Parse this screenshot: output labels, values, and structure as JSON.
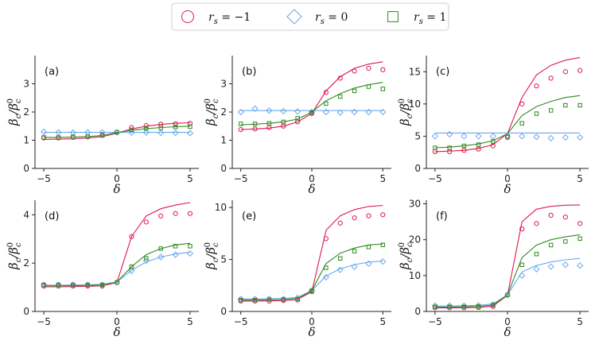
{
  "chart_data": {
    "type": "line",
    "legend": {
      "placement": "top-center",
      "entries": [
        {
          "label": "r_s = −1",
          "sub": "s",
          "rhs": "= −1",
          "marker": "circle",
          "color": "#e0174e"
        },
        {
          "label": "r_s = 0",
          "sub": "s",
          "rhs": "= 0",
          "marker": "diamond",
          "color": "#6aa9ee"
        },
        {
          "label": "r_s = 1",
          "sub": "s",
          "rhs": "= 1",
          "marker": "square",
          "color": "#2e8b1e"
        }
      ]
    },
    "series_colors": {
      "rneg1": "#e0174e",
      "r0": "#6aa9ee",
      "r1": "#2e8b1e"
    },
    "xlabel": "δ",
    "ylabel": "β_c/β_c^0",
    "x_line": [
      -5,
      -4,
      -3,
      -2,
      -1,
      0,
      1,
      2,
      3,
      4,
      5
    ],
    "x_points": [
      -5,
      -4,
      -3,
      -2,
      -1,
      0,
      1,
      2,
      3,
      4,
      5
    ],
    "xticks": [
      -5,
      0,
      5
    ],
    "xlim": [
      -5.6,
      5.6
    ],
    "panels": [
      {
        "label": "(a)",
        "ylim": [
          0,
          4
        ],
        "yticks": [
          0,
          1,
          2,
          3
        ],
        "lines": {
          "rneg1": [
            1.03,
            1.04,
            1.05,
            1.08,
            1.13,
            1.25,
            1.4,
            1.5,
            1.56,
            1.6,
            1.62
          ],
          "r0": [
            1.28,
            1.28,
            1.28,
            1.28,
            1.28,
            1.28,
            1.28,
            1.28,
            1.28,
            1.28,
            1.28
          ],
          "r1": [
            1.1,
            1.1,
            1.11,
            1.13,
            1.17,
            1.27,
            1.35,
            1.41,
            1.45,
            1.48,
            1.5
          ]
        },
        "points": {
          "rneg1": [
            1.08,
            1.08,
            1.1,
            1.12,
            1.18,
            1.28,
            1.45,
            1.52,
            1.57,
            1.58,
            1.6
          ],
          "r0": [
            1.3,
            1.28,
            1.27,
            1.28,
            1.28,
            1.28,
            1.27,
            1.27,
            1.26,
            1.26,
            1.25
          ],
          "r1": [
            1.1,
            1.1,
            1.12,
            1.13,
            1.17,
            1.28,
            1.37,
            1.42,
            1.44,
            1.47,
            1.48
          ]
        }
      },
      {
        "label": "(b)",
        "ylim": [
          0,
          4
        ],
        "yticks": [
          0,
          1,
          2,
          3
        ],
        "lines": {
          "rneg1": [
            1.38,
            1.4,
            1.43,
            1.5,
            1.65,
            1.95,
            2.75,
            3.25,
            3.55,
            3.7,
            3.78
          ],
          "r0": [
            2.05,
            2.05,
            2.05,
            2.05,
            2.05,
            2.05,
            2.05,
            2.05,
            2.05,
            2.05,
            2.05
          ],
          "r1": [
            1.55,
            1.57,
            1.6,
            1.65,
            1.75,
            2.0,
            2.4,
            2.65,
            2.85,
            2.97,
            3.05
          ]
        },
        "points": {
          "rneg1": [
            1.38,
            1.4,
            1.45,
            1.5,
            1.65,
            1.95,
            2.7,
            3.2,
            3.45,
            3.55,
            3.5
          ],
          "r0": [
            2.0,
            2.12,
            2.05,
            2.03,
            2.02,
            2.0,
            2.0,
            1.98,
            2.0,
            2.0,
            2.0
          ],
          "r1": [
            1.58,
            1.58,
            1.6,
            1.65,
            1.78,
            1.98,
            2.3,
            2.55,
            2.75,
            2.9,
            2.82
          ]
        }
      },
      {
        "label": "(c)",
        "ylim": [
          0,
          17.5
        ],
        "yticks": [
          0,
          5,
          10,
          15
        ],
        "lines": {
          "rneg1": [
            2.6,
            2.7,
            2.8,
            3.1,
            3.7,
            5.4,
            11.0,
            14.5,
            16.0,
            16.8,
            17.2
          ],
          "r0": [
            5.5,
            5.5,
            5.5,
            5.5,
            5.5,
            5.5,
            5.5,
            5.5,
            5.5,
            5.5,
            5.5
          ],
          "r1": [
            3.2,
            3.3,
            3.5,
            3.8,
            4.3,
            5.4,
            8.2,
            9.6,
            10.4,
            11.0,
            11.3
          ]
        },
        "points": {
          "rneg1": [
            2.6,
            2.6,
            2.8,
            3.0,
            3.5,
            4.8,
            10.0,
            12.8,
            14.0,
            15.0,
            15.2
          ],
          "r0": [
            5.0,
            5.3,
            5.0,
            5.0,
            5.0,
            5.0,
            5.0,
            4.9,
            4.7,
            4.8,
            4.8
          ],
          "r1": [
            3.2,
            3.2,
            3.5,
            3.7,
            4.2,
            5.0,
            7.0,
            8.5,
            9.0,
            9.8,
            9.8
          ]
        }
      },
      {
        "label": "(d)",
        "ylim": [
          0,
          4.6
        ],
        "yticks": [
          0,
          2,
          4
        ],
        "lines": {
          "rneg1": [
            1.02,
            1.02,
            1.03,
            1.04,
            1.06,
            1.2,
            3.1,
            3.95,
            4.25,
            4.4,
            4.5
          ],
          "r0": [
            1.08,
            1.08,
            1.09,
            1.1,
            1.12,
            1.22,
            1.7,
            2.05,
            2.25,
            2.38,
            2.45
          ],
          "r1": [
            1.06,
            1.06,
            1.07,
            1.08,
            1.1,
            1.22,
            1.85,
            2.35,
            2.6,
            2.75,
            2.82
          ]
        },
        "points": {
          "rneg1": [
            1.05,
            1.05,
            1.05,
            1.05,
            1.05,
            1.2,
            3.1,
            3.7,
            3.95,
            4.05,
            4.05
          ],
          "r0": [
            1.1,
            1.1,
            1.1,
            1.1,
            1.1,
            1.2,
            1.68,
            2.1,
            2.25,
            2.35,
            2.4
          ],
          "r1": [
            1.1,
            1.1,
            1.1,
            1.1,
            1.1,
            1.2,
            1.85,
            2.2,
            2.6,
            2.7,
            2.7
          ]
        }
      },
      {
        "label": "(e)",
        "ylim": [
          0,
          10.7
        ],
        "yticks": [
          0,
          5,
          10
        ],
        "lines": {
          "rneg1": [
            1.0,
            1.0,
            1.02,
            1.05,
            1.15,
            1.9,
            7.8,
            9.2,
            9.8,
            10.1,
            10.2
          ],
          "r0": [
            1.2,
            1.2,
            1.22,
            1.25,
            1.35,
            2.0,
            3.4,
            4.1,
            4.5,
            4.75,
            4.85
          ],
          "r1": [
            1.1,
            1.1,
            1.12,
            1.15,
            1.25,
            2.0,
            4.6,
            5.6,
            6.1,
            6.4,
            6.5
          ]
        },
        "points": {
          "rneg1": [
            1.0,
            1.0,
            1.0,
            1.05,
            1.1,
            1.9,
            7.0,
            8.5,
            9.0,
            9.2,
            9.3
          ],
          "r0": [
            1.2,
            1.2,
            1.2,
            1.2,
            1.3,
            2.0,
            3.3,
            4.0,
            4.3,
            4.6,
            4.8
          ],
          "r1": [
            1.1,
            1.1,
            1.15,
            1.15,
            1.2,
            2.0,
            4.2,
            5.1,
            5.8,
            6.2,
            6.4
          ]
        }
      },
      {
        "label": "(f)",
        "ylim": [
          0,
          31
        ],
        "yticks": [
          0,
          10,
          20,
          30
        ],
        "lines": {
          "rneg1": [
            1.0,
            1.0,
            1.05,
            1.1,
            1.5,
            4.5,
            25.0,
            28.5,
            29.3,
            29.6,
            29.7
          ],
          "r0": [
            1.5,
            1.5,
            1.6,
            1.7,
            2.1,
            4.6,
            11.0,
            12.8,
            13.8,
            14.4,
            14.8
          ],
          "r1": [
            1.2,
            1.2,
            1.3,
            1.4,
            1.8,
            4.6,
            15.0,
            18.5,
            20.0,
            20.8,
            21.4
          ]
        },
        "points": {
          "rneg1": [
            1.0,
            1.0,
            1.0,
            1.1,
            1.4,
            4.6,
            23.0,
            24.5,
            26.8,
            26.3,
            24.5
          ],
          "r0": [
            1.6,
            1.6,
            1.6,
            1.7,
            1.9,
            4.6,
            10.0,
            11.8,
            12.5,
            13.0,
            12.8
          ],
          "r1": [
            1.3,
            1.3,
            1.3,
            1.4,
            1.8,
            4.6,
            13.0,
            16.0,
            18.5,
            19.5,
            20.3
          ]
        }
      }
    ]
  }
}
